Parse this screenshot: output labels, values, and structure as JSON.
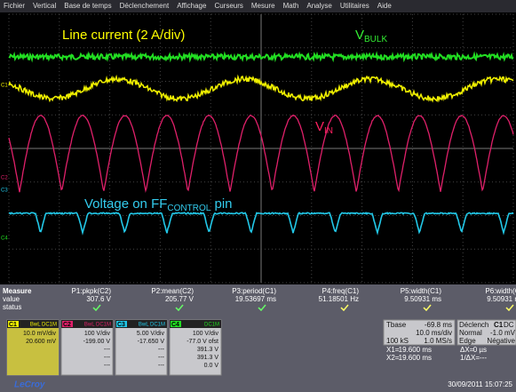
{
  "menu": [
    "Fichier",
    "Vertical",
    "Base de temps",
    "Déclenchement",
    "Affichage",
    "Curseurs",
    "Mesure",
    "Math",
    "Analyse",
    "Utilitaires",
    "Aide"
  ],
  "annotations": {
    "line_current": "Line current (2 A/div)",
    "vbulk": {
      "main": "V",
      "sub": "BULK"
    },
    "vin": {
      "main": "V",
      "sub": "IN"
    },
    "ff": {
      "pre": "Voltage on FF",
      "sub": "CONTROL",
      "post": " pin"
    }
  },
  "channel_markers": [
    "C1",
    "C2",
    "C3",
    "C4"
  ],
  "measure": {
    "row_labels": [
      "Measure",
      "value",
      "status"
    ],
    "columns": [
      {
        "name": "P1:pkpk(C2)",
        "value": "307.6 V"
      },
      {
        "name": "P2:mean(C2)",
        "value": "205.77 V"
      },
      {
        "name": "P3:period(C1)",
        "value": "19.53697 ms"
      },
      {
        "name": "P4:freq(C1)",
        "value": "51.18501 Hz"
      },
      {
        "name": "P5:width(C1)",
        "value": "9.50931 ms"
      },
      {
        "name": "P6:width(C1",
        "value": "9.50931 ms"
      }
    ]
  },
  "channels": [
    {
      "id": "C1",
      "coupling": "BwL DC1M",
      "lines": [
        "10.0 mV/div",
        "20.600 mV"
      ]
    },
    {
      "id": "C2",
      "coupling": "BwL DC1M",
      "lines": [
        "100 V/div",
        "-199.00 V",
        "---",
        "---",
        "---"
      ]
    },
    {
      "id": "C3",
      "coupling": "BwL DC1M",
      "lines": [
        "5.00 V/div",
        "-17.650 V",
        "---",
        "---",
        "---"
      ]
    },
    {
      "id": "C4",
      "coupling": "DC1M",
      "lines": [
        "100 V/div",
        "-77.0 V ofst",
        "391.3 V",
        "391.3 V",
        "0.0 V"
      ]
    }
  ],
  "timebase": {
    "label": "Tbase",
    "offset": "-69.8 ms",
    "div": "10.0 ms/div",
    "samples": "100 kS",
    "rate": "1.0 MS/s"
  },
  "cursors": [
    [
      "X1=",
      "19.600 ms",
      "ΔX=",
      "0 µs"
    ],
    [
      "X2=",
      "19.600 ms",
      "1/ΔX=",
      "---"
    ]
  ],
  "trigger": {
    "label": "Déclench",
    "source": "C1",
    "coupling": "DC",
    "mode": "Normal",
    "level": "-1.0 mV",
    "kind": "Edge",
    "slope": "Négative"
  },
  "brand": "LeCroy",
  "timestamp": "30/09/2011 15:07:25"
}
